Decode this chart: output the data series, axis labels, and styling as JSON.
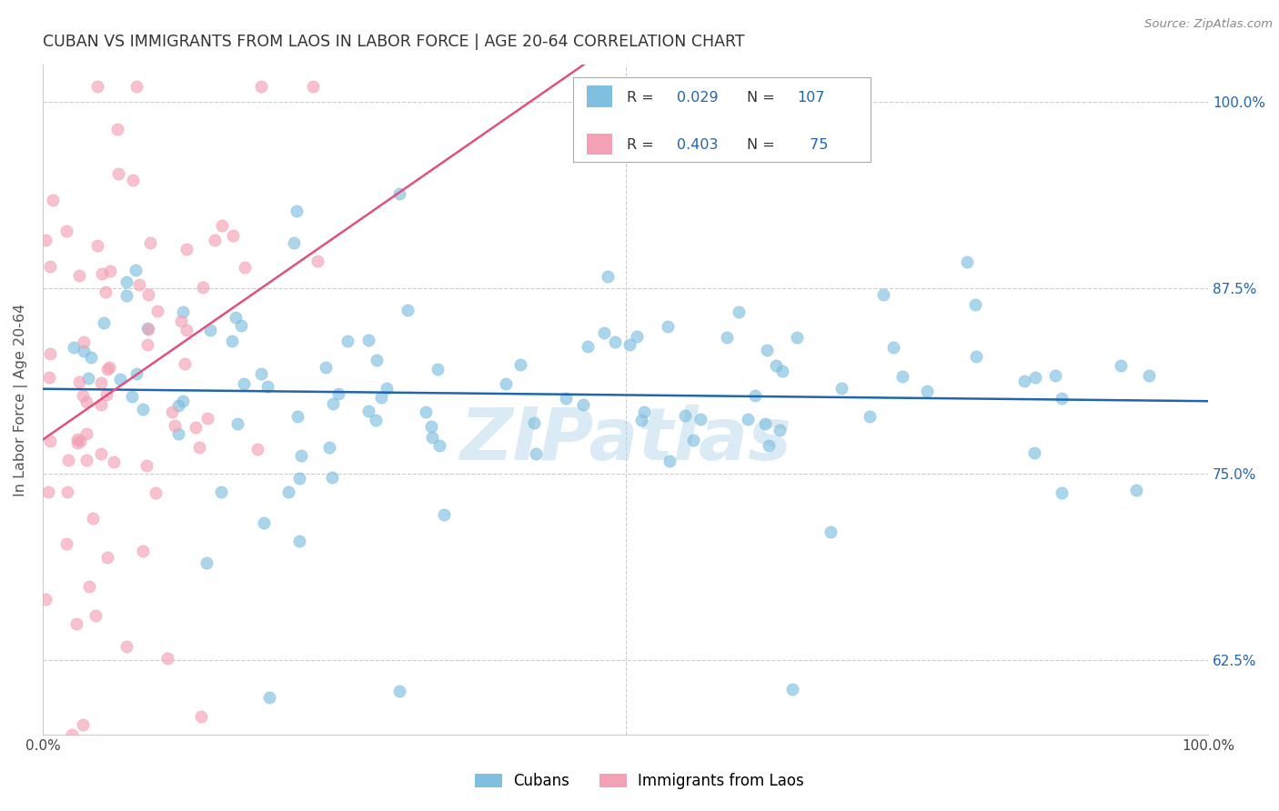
{
  "title": "CUBAN VS IMMIGRANTS FROM LAOS IN LABOR FORCE | AGE 20-64 CORRELATION CHART",
  "source_text": "Source: ZipAtlas.com",
  "ylabel": "In Labor Force | Age 20-64",
  "xlim": [
    0.0,
    1.0
  ],
  "ylim": [
    0.575,
    1.025
  ],
  "yticks": [
    0.625,
    0.75,
    0.875,
    1.0
  ],
  "ytick_labels": [
    "62.5%",
    "75.0%",
    "87.5%",
    "100.0%"
  ],
  "legend_labels": [
    "Cubans",
    "Immigrants from Laos"
  ],
  "cubans_R": "0.029",
  "cubans_N": "107",
  "laos_R": "0.403",
  "laos_N": "75",
  "cubans_color": "#7fbfdf",
  "laos_color": "#f4a0b5",
  "cubans_line_color": "#2166ac",
  "laos_line_color": "#e05080",
  "legend_R_color": "#2166ac",
  "legend_text_color": "#333333",
  "watermark": "ZIPatlas",
  "background_color": "#ffffff",
  "grid_color": "#cccccc",
  "title_color": "#333333",
  "axis_color": "#cccccc",
  "seed": 42
}
